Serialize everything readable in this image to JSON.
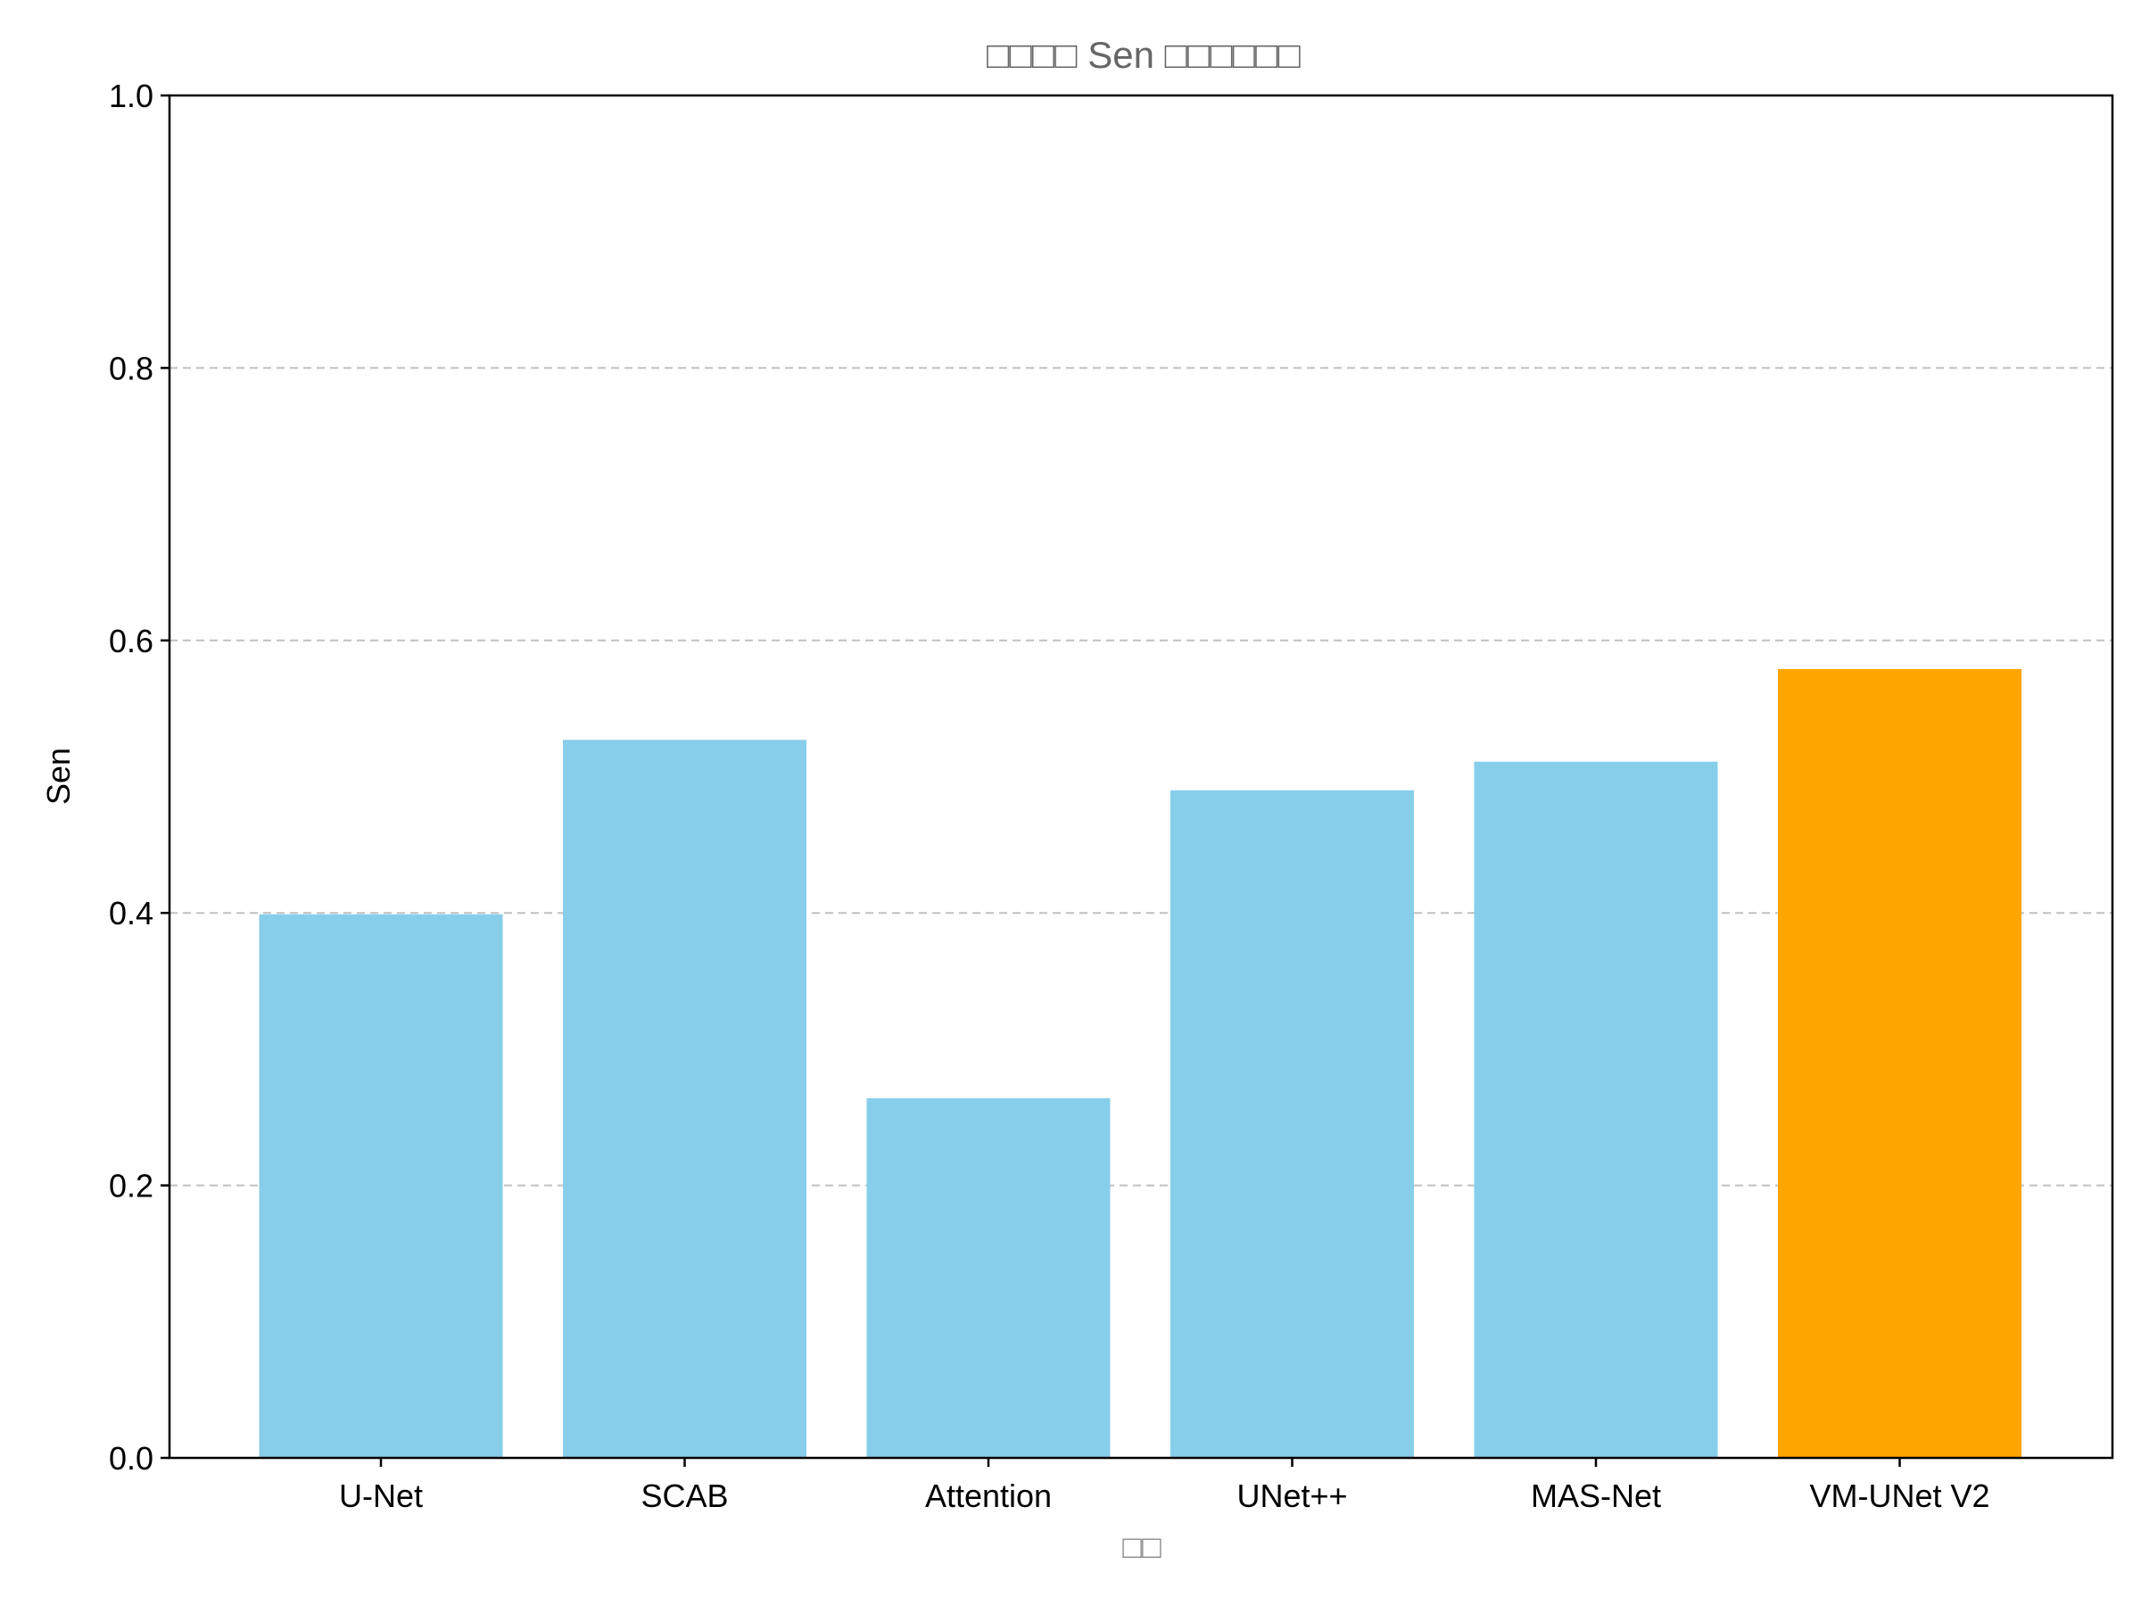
{
  "chart_data": {
    "type": "bar",
    "title": "□□□□ Sen □□□□□□",
    "xlabel": "□□",
    "ylabel": "Sen",
    "categories": [
      "U-Net",
      "SCAB",
      "Attention",
      "UNet++",
      "MAS-Net",
      "VM-UNet V2"
    ],
    "values": [
      0.399,
      0.527,
      0.264,
      0.49,
      0.511,
      0.579
    ],
    "colors": [
      "#87CEEB",
      "#87CEEB",
      "#87CEEB",
      "#87CEEB",
      "#87CEEB",
      "#FFA500"
    ],
    "ylim": [
      0,
      1.0
    ],
    "yticks": [
      "0.0",
      "0.2",
      "0.4",
      "0.6",
      "0.8",
      "1.0"
    ],
    "grid": "y-dashed",
    "grid_color": "#c0c0c0"
  }
}
